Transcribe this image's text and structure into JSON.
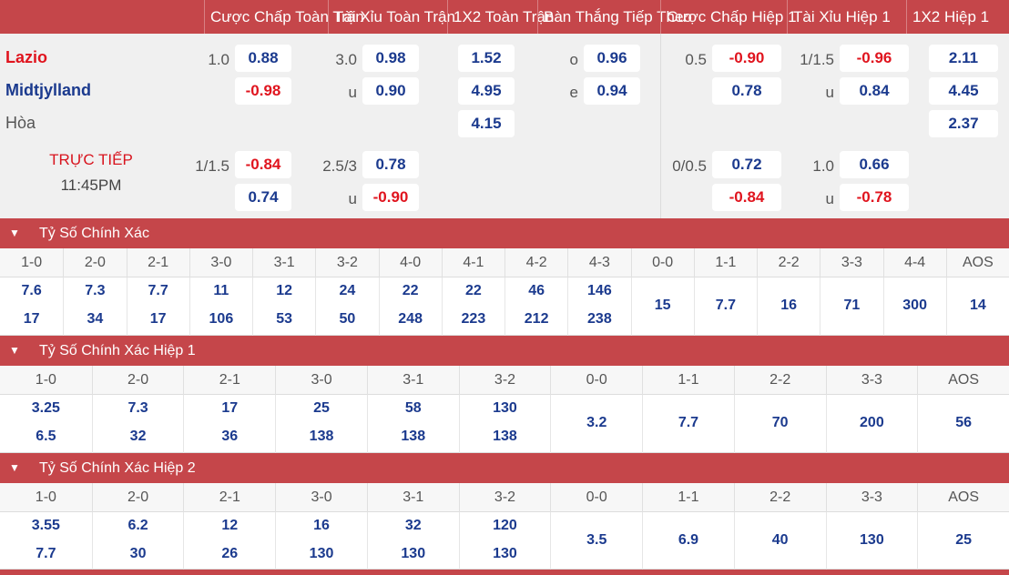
{
  "header": {
    "cols": [
      "Cược Chấp Toàn Trận",
      "Tài Xỉu Toàn Trận",
      "1X2 Toàn Trận",
      "Bàn Thắng Tiếp Theo",
      "Cược Chấp Hiệp 1",
      "Tài Xỉu Hiệp 1",
      "1X2 Hiệp 1"
    ]
  },
  "match": {
    "home": "Lazio",
    "away": "Midtjylland",
    "draw": "Hòa",
    "live_label": "TRỰC TIẾP",
    "time": "11:45PM",
    "row1": {
      "hcp": "1.0",
      "hcp_home": "0.88",
      "hcp_away": "-0.98",
      "ou": "3.0",
      "ou_over": "0.98",
      "ou_under_label": "u",
      "ou_under": "0.90",
      "x12_home": "1.52",
      "x12_away": "4.95",
      "x12_draw": "4.15",
      "ng_o_label": "o",
      "ng_o": "0.96",
      "ng_e_label": "e",
      "ng_e": "0.94",
      "h1_hcp": "0.5",
      "h1_hcp_home": "-0.90",
      "h1_hcp_away": "0.78",
      "h1_ou": "1/1.5",
      "h1_ou_over": "-0.96",
      "h1_ou_under_label": "u",
      "h1_ou_under": "0.84",
      "h1_x12_home": "2.11",
      "h1_x12_away": "4.45",
      "h1_x12_draw": "2.37"
    },
    "row2": {
      "hcp": "1/1.5",
      "hcp_home": "-0.84",
      "hcp_away": "0.74",
      "ou": "2.5/3",
      "ou_over": "0.78",
      "ou_under_label": "u",
      "ou_under": "-0.90",
      "h1_hcp": "0/0.5",
      "h1_hcp_home": "0.72",
      "h1_hcp_away": "-0.84",
      "h1_ou": "1.0",
      "h1_ou_over": "0.66",
      "h1_ou_under_label": "u",
      "h1_ou_under": "-0.78"
    }
  },
  "sections": [
    {
      "title": "Tỷ Số Chính Xác",
      "paired": [
        {
          "label": "1-0",
          "a": "7.6",
          "b": "17"
        },
        {
          "label": "2-0",
          "a": "7.3",
          "b": "34"
        },
        {
          "label": "2-1",
          "a": "7.7",
          "b": "17"
        },
        {
          "label": "3-0",
          "a": "11",
          "b": "106"
        },
        {
          "label": "3-1",
          "a": "12",
          "b": "53"
        },
        {
          "label": "3-2",
          "a": "24",
          "b": "50"
        },
        {
          "label": "4-0",
          "a": "22",
          "b": "248"
        },
        {
          "label": "4-1",
          "a": "22",
          "b": "223"
        },
        {
          "label": "4-2",
          "a": "46",
          "b": "212"
        },
        {
          "label": "4-3",
          "a": "146",
          "b": "238"
        }
      ],
      "single": [
        {
          "label": "0-0",
          "v": "15"
        },
        {
          "label": "1-1",
          "v": "7.7"
        },
        {
          "label": "2-2",
          "v": "16"
        },
        {
          "label": "3-3",
          "v": "71"
        },
        {
          "label": "4-4",
          "v": "300"
        },
        {
          "label": "AOS",
          "v": "14"
        }
      ]
    },
    {
      "title": "Tỷ Số Chính Xác Hiệp 1",
      "paired": [
        {
          "label": "1-0",
          "a": "3.25",
          "b": "6.5"
        },
        {
          "label": "2-0",
          "a": "7.3",
          "b": "32"
        },
        {
          "label": "2-1",
          "a": "17",
          "b": "36"
        },
        {
          "label": "3-0",
          "a": "25",
          "b": "138"
        },
        {
          "label": "3-1",
          "a": "58",
          "b": "138"
        },
        {
          "label": "3-2",
          "a": "130",
          "b": "138"
        }
      ],
      "single": [
        {
          "label": "0-0",
          "v": "3.2"
        },
        {
          "label": "1-1",
          "v": "7.7"
        },
        {
          "label": "2-2",
          "v": "70"
        },
        {
          "label": "3-3",
          "v": "200"
        },
        {
          "label": "AOS",
          "v": "56"
        }
      ]
    },
    {
      "title": "Tỷ Số Chính Xác Hiệp 2",
      "paired": [
        {
          "label": "1-0",
          "a": "3.55",
          "b": "7.7"
        },
        {
          "label": "2-0",
          "a": "6.2",
          "b": "30"
        },
        {
          "label": "2-1",
          "a": "12",
          "b": "26"
        },
        {
          "label": "3-0",
          "a": "16",
          "b": "130"
        },
        {
          "label": "3-1",
          "a": "32",
          "b": "130"
        },
        {
          "label": "3-2",
          "a": "120",
          "b": "130"
        }
      ],
      "single": [
        {
          "label": "0-0",
          "v": "3.5"
        },
        {
          "label": "1-1",
          "v": "6.9"
        },
        {
          "label": "2-2",
          "v": "40"
        },
        {
          "label": "3-3",
          "v": "130"
        },
        {
          "label": "AOS",
          "v": "25"
        }
      ]
    }
  ],
  "colors": {
    "accent": "#c5464a",
    "blue": "#1b3a8e",
    "red": "#e0141e"
  },
  "icons": {
    "section_toggle": "chevron-down-icon"
  }
}
